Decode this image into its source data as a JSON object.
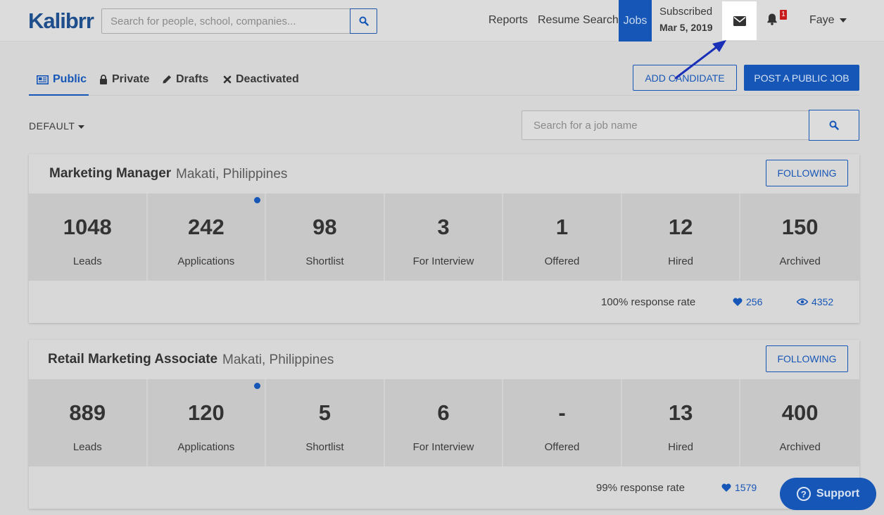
{
  "header": {
    "logo": "Kalibrr",
    "search_placeholder": "Search for people, school, companies...",
    "nav": {
      "reports": "Reports",
      "resume_search": "Resume Search",
      "jobs": "Jobs"
    },
    "subscription": {
      "label": "Subscribed",
      "date": "Mar 5, 2019"
    },
    "notification_count": "1",
    "user": "Faye"
  },
  "tabs": [
    {
      "label": "Public",
      "icon": "newspaper-icon"
    },
    {
      "label": "Private",
      "icon": "lock-icon"
    },
    {
      "label": "Drafts",
      "icon": "pencil-icon"
    },
    {
      "label": "Deactivated",
      "icon": "x-icon"
    }
  ],
  "actions": {
    "add_candidate": "ADD CANDIDATE",
    "post_job": "POST A PUBLIC JOB"
  },
  "sort_label": "DEFAULT",
  "job_search_placeholder": "Search for a job name",
  "jobs": [
    {
      "title": "Marketing Manager",
      "location": "Makati, Philippines",
      "follow_label": "FOLLOWING",
      "stats": [
        {
          "value": "1048",
          "label": "Leads"
        },
        {
          "value": "242",
          "label": "Applications"
        },
        {
          "value": "98",
          "label": "Shortlist"
        },
        {
          "value": "3",
          "label": "For Interview"
        },
        {
          "value": "1",
          "label": "Offered"
        },
        {
          "value": "12",
          "label": "Hired"
        },
        {
          "value": "150",
          "label": "Archived"
        }
      ],
      "response_rate": "100% response rate",
      "likes": "256",
      "views": "4352"
    },
    {
      "title": "Retail Marketing Associate",
      "location": "Makati, Philippines",
      "follow_label": "FOLLOWING",
      "stats": [
        {
          "value": "889",
          "label": "Leads"
        },
        {
          "value": "120",
          "label": "Applications"
        },
        {
          "value": "5",
          "label": "Shortlist"
        },
        {
          "value": "6",
          "label": "For Interview"
        },
        {
          "value": "-",
          "label": "Offered"
        },
        {
          "value": "13",
          "label": "Hired"
        },
        {
          "value": "400",
          "label": "Archived"
        }
      ],
      "response_rate": "99% response rate",
      "likes": "1579"
    }
  ],
  "support_label": "Support",
  "colors": {
    "accent": "#1656b6",
    "badge": "#c81a1a"
  }
}
